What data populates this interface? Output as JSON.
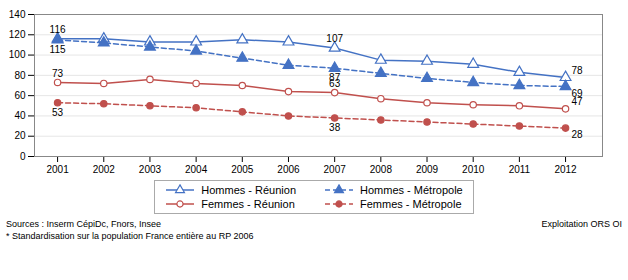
{
  "chart_data": {
    "type": "line",
    "x": [
      2001,
      2002,
      2003,
      2004,
      2005,
      2006,
      2007,
      2008,
      2009,
      2010,
      2011,
      2012
    ],
    "xlim": [
      2000.5,
      2012.8
    ],
    "xticks": [
      2001,
      2002,
      2003,
      2004,
      2005,
      2006,
      2007,
      2008,
      2009,
      2010,
      2011,
      2012
    ],
    "ylim": [
      0,
      140
    ],
    "yticks": [
      0,
      20,
      40,
      60,
      80,
      100,
      120,
      140
    ],
    "grid": true,
    "series": [
      {
        "name": "Hommes - Réunion",
        "color": "#4472C4",
        "marker": "triangle-open",
        "line_style": "solid",
        "values": [
          116,
          116,
          113,
          113,
          115,
          113,
          107,
          95,
          94,
          91,
          83,
          78
        ]
      },
      {
        "name": "Femmes - Réunion",
        "color": "#C0504D",
        "marker": "circle-open",
        "line_style": "solid",
        "values": [
          73,
          72,
          76,
          72,
          70,
          64,
          63,
          57,
          53,
          51,
          50,
          47
        ]
      },
      {
        "name": "Hommes - Métropole",
        "color": "#4472C4",
        "marker": "triangle",
        "line_style": "dashed",
        "values": [
          115,
          112,
          108,
          104,
          97,
          90,
          87,
          82,
          77,
          73,
          70,
          69
        ]
      },
      {
        "name": "Femmes - Métropole",
        "color": "#C0504D",
        "marker": "circle",
        "line_style": "dashed",
        "values": [
          53,
          52,
          50,
          48,
          44,
          40,
          38,
          36,
          34,
          32,
          30,
          28
        ]
      }
    ],
    "annotations": [
      {
        "text": "116",
        "x": 2001,
        "y": 116
      },
      {
        "text": "115",
        "x": 2001,
        "y": 115
      },
      {
        "text": "73",
        "x": 2001,
        "y": 73
      },
      {
        "text": "53",
        "x": 2001,
        "y": 53
      },
      {
        "text": "107",
        "x": 2007,
        "y": 107
      },
      {
        "text": "87",
        "x": 2007,
        "y": 87
      },
      {
        "text": "63",
        "x": 2007,
        "y": 63
      },
      {
        "text": "38",
        "x": 2007,
        "y": 38
      },
      {
        "text": "78",
        "x": 2012,
        "y": 78
      },
      {
        "text": "69",
        "x": 2012,
        "y": 69
      },
      {
        "text": "47",
        "x": 2012,
        "y": 47
      },
      {
        "text": "28",
        "x": 2012,
        "y": 28
      }
    ],
    "source": "Sources : Inserm CépiDc, Fnors, Insee",
    "source_right": "Exploitation ORS OI",
    "footnote": "* Standardisation sur la population France entière au RP 2006"
  }
}
